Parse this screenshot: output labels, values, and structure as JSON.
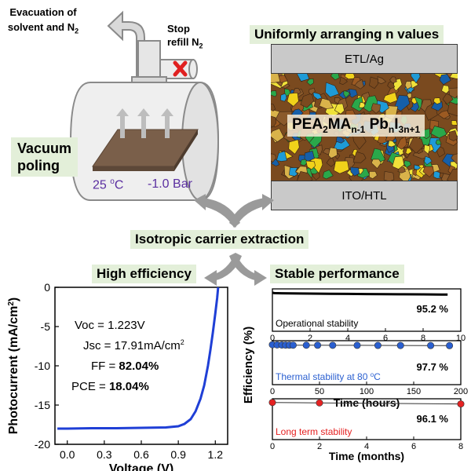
{
  "top_left": {
    "evacuation_line1": "Evacuation of",
    "evacuation_line2": "solvent and N",
    "evacuation_sub": "2",
    "stop_line1": "Stop",
    "stop_line2": "refill N",
    "stop_sub": "2",
    "vacuum_line1": "Vacuum",
    "vacuum_line2": "poling",
    "temp": "25 ",
    "temp_unit_sup": "o",
    "temp_unit": "C",
    "pressure": "-1.0 Bar"
  },
  "top_right": {
    "title": "Uniformly arranging n values",
    "top_layer": "ETL/Ag",
    "bottom_layer": "ITO/HTL",
    "formula": {
      "p1": "PEA",
      "s1": "2",
      "p2": "MA",
      "s2": "n-1",
      "p3": "Pb",
      "s3": "n",
      "p4": "I",
      "s4": "3n+1"
    }
  },
  "center_label": "Isotropic carrier extraction",
  "left_panel": {
    "title": "High efficiency",
    "params": {
      "voc": "Voc = 1.223V",
      "jsc": "Jsc = 17.91mA/cm",
      "jsc_sup": "2",
      "ff_label": "FF = ",
      "ff_value": "82.04%",
      "pce_label": "PCE = ",
      "pce_value": "18.04%"
    }
  },
  "right_panel": {
    "title": "Stable performance"
  },
  "chart_data": [
    {
      "type": "line",
      "title": "High efficiency",
      "xlabel": "Voltage (V)",
      "ylabel": "Photocurrent (mA/cm",
      "ylabel_sup": "2",
      "ylabel_end": ")",
      "xlim": [
        -0.1,
        1.3
      ],
      "ylim": [
        -20,
        0
      ],
      "xticks": [
        "0.0",
        "0.3",
        "0.6",
        "0.9",
        "1.2"
      ],
      "xtick_values": [
        0.0,
        0.3,
        0.6,
        0.9,
        1.2
      ],
      "yticks": [
        "0",
        "-5",
        "-10",
        "-15",
        "-20"
      ],
      "ytick_values": [
        0,
        -5,
        -10,
        -15,
        -20
      ],
      "series": [
        {
          "name": "J-V curve",
          "color": "#1f3fd6",
          "x": [
            -0.08,
            0.0,
            0.2,
            0.4,
            0.6,
            0.8,
            0.9,
            0.95,
            1.0,
            1.04,
            1.08,
            1.11,
            1.14,
            1.16,
            1.18,
            1.2,
            1.215,
            1.223
          ],
          "y": [
            -18.0,
            -18.0,
            -17.95,
            -17.95,
            -17.9,
            -17.85,
            -17.7,
            -17.4,
            -16.8,
            -15.8,
            -14.2,
            -12.5,
            -10.0,
            -8.0,
            -5.8,
            -3.3,
            -1.4,
            0.0
          ]
        }
      ]
    },
    {
      "type": "line",
      "title": "Operational stability",
      "xlim": [
        0,
        10
      ],
      "ylim": [
        0,
        110
      ],
      "xticks": [
        "0",
        "2",
        "4",
        "6",
        "8",
        "10"
      ],
      "xtick_values": [
        0,
        2,
        4,
        6,
        8,
        10
      ],
      "xlabel": "",
      "annotation": "95.2 %",
      "legend_text": "Operational stability",
      "series": [
        {
          "name": "Operational",
          "color": "#000000",
          "x": [
            0,
            0.1,
            0.5,
            1,
            2,
            3,
            4,
            5,
            6,
            7,
            8,
            9,
            9.3
          ],
          "y": [
            100,
            99.0,
            98.6,
            98.2,
            97.8,
            97.4,
            97.0,
            96.6,
            96.3,
            96.0,
            95.7,
            95.4,
            95.2
          ]
        }
      ]
    },
    {
      "type": "scatter",
      "title": "Thermal stability at 80 oC",
      "xlim": [
        0,
        200
      ],
      "ylim": [
        0,
        110
      ],
      "xticks": [
        "0",
        "50",
        "100",
        "150",
        "200"
      ],
      "xtick_values": [
        0,
        50,
        100,
        150,
        200
      ],
      "xlabel": "Time (hours)",
      "annotation": "97.7 %",
      "legend_text": "Thermal stability at 80 ",
      "legend_sup": "o",
      "legend_end": "C",
      "series": [
        {
          "name": "Thermal",
          "color": "#2a5fd0",
          "x": [
            0,
            5,
            10,
            14,
            18,
            22,
            36,
            48,
            64,
            90,
            112,
            136,
            168,
            188
          ],
          "y": [
            100,
            99.5,
            99.2,
            99.0,
            98.9,
            98.8,
            98.7,
            98.6,
            98.5,
            98.4,
            98.2,
            98.0,
            97.9,
            97.7
          ]
        }
      ]
    },
    {
      "type": "scatter",
      "title": "Long term stability",
      "xlim": [
        0,
        8
      ],
      "ylim": [
        0,
        110
      ],
      "xticks": [
        "0",
        "2",
        "4",
        "6",
        "8"
      ],
      "xtick_values": [
        0,
        2,
        4,
        6,
        8
      ],
      "xlabel": "Time (months)",
      "annotation": "96.1 %",
      "legend_text": "Long term stability",
      "series": [
        {
          "name": "Long term",
          "color": "#e52222",
          "x": [
            0,
            2,
            8
          ],
          "y": [
            100,
            99.0,
            96.1
          ]
        }
      ]
    }
  ],
  "stability_ylabel": "Efficiency (%)"
}
